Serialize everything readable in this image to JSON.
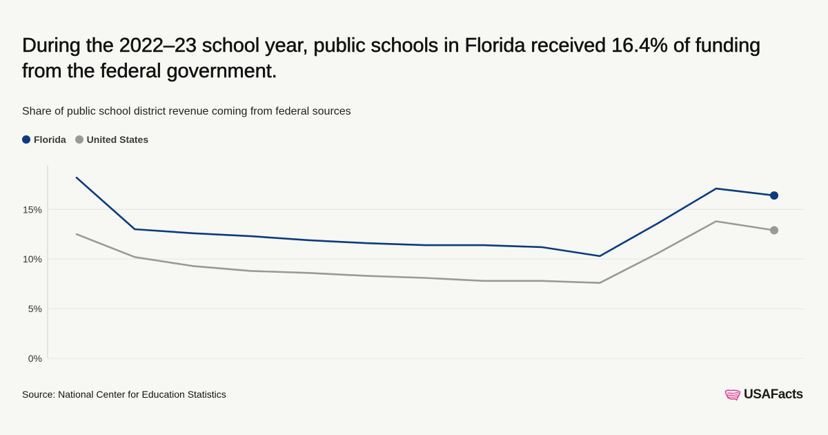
{
  "title": "During the 2022–23 school year, public schools in Florida received 16.4% of funding from the federal government.",
  "subtitle": "Share of public school district revenue coming from federal sources",
  "source": "Source: National Center for Education Statistics",
  "logo": {
    "text": "USAFacts",
    "icon": "usa-map-icon",
    "color": "#d9338a"
  },
  "colors": {
    "florida": "#0b3b7d",
    "united_states": "#999999",
    "gridline": "#e4e4df",
    "axis": "#cfcfca"
  },
  "chart_data": {
    "type": "line",
    "y_ticks": [
      "0%",
      "5%",
      "10%",
      "15%"
    ],
    "y_tick_values": [
      0,
      5,
      10,
      15
    ],
    "ylim": [
      0,
      19.4
    ],
    "x_labels_shown": false,
    "grid": true,
    "legend_position": "top-left",
    "highlight_last_point": true,
    "series": [
      {
        "name": "Florida",
        "color": "#0b3b7d",
        "values": [
          18.2,
          13.0,
          12.6,
          12.3,
          11.9,
          11.6,
          11.4,
          11.4,
          11.2,
          10.3,
          13.6,
          17.1,
          16.4
        ]
      },
      {
        "name": "United States",
        "color": "#999999",
        "values": [
          12.5,
          10.2,
          9.3,
          8.8,
          8.6,
          8.3,
          8.1,
          7.8,
          7.8,
          7.6,
          10.6,
          13.8,
          12.9
        ]
      }
    ]
  }
}
